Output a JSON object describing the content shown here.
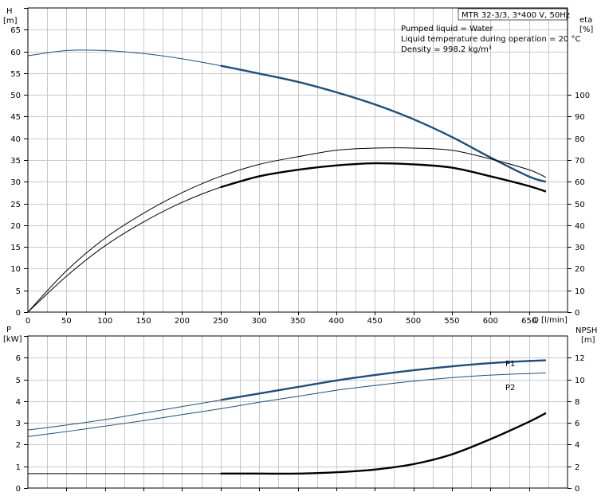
{
  "info": {
    "model": "MTR 32-3/3, 3*400 V, 50Hz",
    "lines": [
      "Pumped liquid = Water",
      "Liquid temperature during operation = 20 °C",
      "Density = 998.2 kg/m³"
    ]
  },
  "colors": {
    "blue": "#1f4e79",
    "black": "#000000",
    "grid": "#c8c8c8"
  },
  "chart_data": [
    {
      "type": "line",
      "x_axis": {
        "title": "Q [l/min]",
        "min": 0,
        "max": 700,
        "ticks": [
          0,
          50,
          100,
          150,
          200,
          250,
          300,
          350,
          400,
          450,
          500,
          550,
          600,
          650
        ]
      },
      "left_axis": {
        "title": [
          "H",
          "[m]"
        ],
        "min": 0,
        "max": 70,
        "ticks": [
          0,
          5,
          10,
          15,
          20,
          25,
          30,
          35,
          40,
          45,
          50,
          55,
          60,
          65
        ]
      },
      "right_axis": {
        "title": [
          "eta",
          "[%]"
        ],
        "min": 0,
        "max": 140,
        "ticks": [
          0,
          10,
          20,
          30,
          40,
          50,
          60,
          70,
          80,
          90,
          100
        ]
      },
      "grid": true,
      "series": [
        {
          "key": "head",
          "axis": "left",
          "color": "blue",
          "thick_from": 250,
          "x": [
            0,
            50,
            100,
            150,
            200,
            250,
            300,
            350,
            400,
            450,
            500,
            550,
            600,
            650,
            672
          ],
          "y": [
            59,
            60.2,
            60.2,
            59.5,
            58.3,
            56.7,
            54.9,
            53,
            50.6,
            47.8,
            44.4,
            40.3,
            35.6,
            31.2,
            30
          ]
        },
        {
          "key": "eta-thin",
          "axis": "right",
          "color": "black",
          "thick_from": null,
          "x": [
            0,
            50,
            100,
            150,
            200,
            250,
            300,
            350,
            400,
            450,
            500,
            550,
            600,
            650,
            672
          ],
          "y": [
            0,
            19,
            34,
            45.5,
            55,
            62.5,
            68,
            71.5,
            74.5,
            75.5,
            75.5,
            74.5,
            70.5,
            65.5,
            62
          ]
        },
        {
          "key": "eta-bold",
          "axis": "right",
          "color": "black",
          "thick_from": 250,
          "x": [
            0,
            50,
            100,
            150,
            200,
            250,
            300,
            350,
            400,
            450,
            500,
            550,
            600,
            650,
            672
          ],
          "y": [
            0,
            16.5,
            30.5,
            41.5,
            50.5,
            57.5,
            62.5,
            65.5,
            67.5,
            68.5,
            68,
            66.5,
            62.5,
            58,
            55.5
          ]
        }
      ]
    },
    {
      "type": "line",
      "x_axis": {
        "min": 0,
        "max": 700
      },
      "left_axis": {
        "title": [
          "P",
          "[kW]"
        ],
        "min": 0,
        "max": 7,
        "ticks": [
          0,
          1,
          2,
          3,
          4,
          5,
          6
        ]
      },
      "right_axis": {
        "title": [
          "NPSH",
          "[m]"
        ],
        "min": 0,
        "max": 14,
        "ticks": [
          0,
          2,
          4,
          6,
          8,
          10,
          12
        ]
      },
      "grid": true,
      "series": [
        {
          "key": "p1",
          "name": "P1",
          "axis": "left",
          "color": "blue",
          "thick_from": 250,
          "x": [
            0,
            50,
            100,
            150,
            200,
            250,
            300,
            350,
            400,
            450,
            500,
            550,
            600,
            650,
            672
          ],
          "y": [
            2.67,
            2.9,
            3.15,
            3.45,
            3.75,
            4.05,
            4.35,
            4.65,
            4.95,
            5.2,
            5.42,
            5.6,
            5.75,
            5.85,
            5.88
          ]
        },
        {
          "key": "p2",
          "name": "P2",
          "axis": "left",
          "color": "blue",
          "thick_from": null,
          "x": [
            0,
            50,
            100,
            150,
            200,
            250,
            300,
            350,
            400,
            450,
            500,
            550,
            600,
            650,
            672
          ],
          "y": [
            2.37,
            2.6,
            2.85,
            3.1,
            3.38,
            3.65,
            3.95,
            4.22,
            4.5,
            4.72,
            4.92,
            5.08,
            5.2,
            5.27,
            5.3
          ]
        },
        {
          "key": "npsh",
          "axis": "right",
          "color": "black",
          "thick_from": 250,
          "x": [
            0,
            50,
            100,
            150,
            200,
            250,
            300,
            350,
            400,
            450,
            500,
            550,
            600,
            650,
            672
          ],
          "y": [
            1.33,
            1.33,
            1.33,
            1.33,
            1.33,
            1.33,
            1.33,
            1.33,
            1.45,
            1.7,
            2.2,
            3.1,
            4.5,
            6.1,
            6.9
          ]
        }
      ]
    }
  ]
}
